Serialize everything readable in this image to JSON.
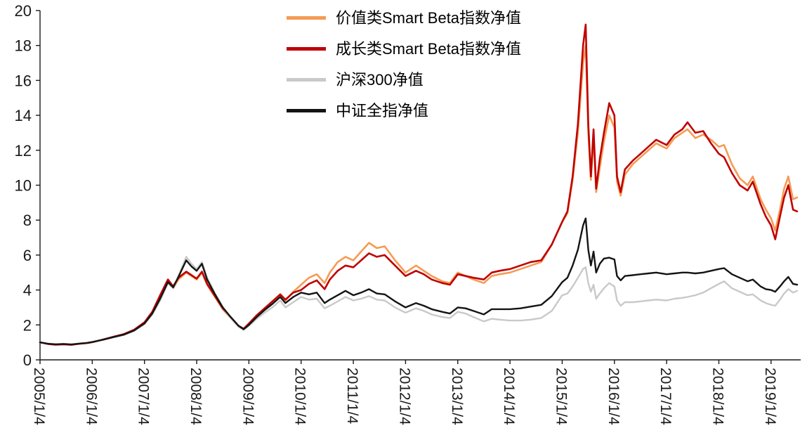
{
  "chart_data": {
    "type": "line",
    "title": "",
    "xlabel": "",
    "ylabel": "",
    "grid": false,
    "axis_color": "#1a1a1a",
    "legend": {
      "position": "top-center",
      "orientation": "vertical"
    },
    "y_axis": {
      "ticks": [
        0,
        2,
        4,
        6,
        8,
        10,
        12,
        14,
        16,
        18,
        20
      ],
      "range": [
        0,
        20
      ]
    },
    "x_axis": {
      "tick_labels": [
        "2005/1/4",
        "2006/1/4",
        "2007/1/4",
        "2008/1/4",
        "2009/1/4",
        "2010/1/4",
        "2011/1/4",
        "2012/1/4",
        "2013/1/4",
        "2014/1/4",
        "2015/1/4",
        "2016/1/4",
        "2017/1/4",
        "2018/1/4",
        "2019/1/4"
      ],
      "tick_positions": [
        2005,
        2006,
        2007,
        2008,
        2009,
        2010,
        2011,
        2012,
        2013,
        2014,
        2015,
        2016,
        2017,
        2018,
        2019
      ],
      "range": [
        2005,
        2019.5
      ],
      "label_rotation": 90
    },
    "x": [
      2005.0,
      2005.15,
      2005.3,
      2005.45,
      2005.6,
      2005.75,
      2005.9,
      2006.0,
      2006.2,
      2006.4,
      2006.6,
      2006.8,
      2007.0,
      2007.15,
      2007.3,
      2007.45,
      2007.55,
      2007.65,
      2007.8,
      2007.9,
      2008.0,
      2008.1,
      2008.2,
      2008.35,
      2008.5,
      2008.65,
      2008.8,
      2008.9,
      2009.0,
      2009.15,
      2009.3,
      2009.45,
      2009.6,
      2009.7,
      2009.85,
      2010.0,
      2010.15,
      2010.3,
      2010.45,
      2010.55,
      2010.7,
      2010.85,
      2011.0,
      2011.15,
      2011.3,
      2011.45,
      2011.6,
      2011.8,
      2012.0,
      2012.2,
      2012.35,
      2012.5,
      2012.7,
      2012.85,
      2013.0,
      2013.15,
      2013.3,
      2013.5,
      2013.65,
      2013.8,
      2014.0,
      2014.2,
      2014.4,
      2014.6,
      2014.8,
      2015.0,
      2015.1,
      2015.2,
      2015.3,
      2015.4,
      2015.45,
      2015.5,
      2015.55,
      2015.6,
      2015.65,
      2015.72,
      2015.8,
      2015.9,
      2016.0,
      2016.05,
      2016.12,
      2016.2,
      2016.35,
      2016.5,
      2016.65,
      2016.8,
      2017.0,
      2017.15,
      2017.3,
      2017.4,
      2017.55,
      2017.7,
      2017.85,
      2018.0,
      2018.1,
      2018.25,
      2018.4,
      2018.55,
      2018.65,
      2018.8,
      2018.9,
      2019.0,
      2019.08,
      2019.17,
      2019.25,
      2019.33,
      2019.42,
      2019.5
    ],
    "series": [
      {
        "name": "价值类Smart Beta指数净值",
        "color": "#f59b54",
        "values": [
          1.0,
          0.92,
          0.88,
          0.9,
          0.87,
          0.93,
          0.97,
          1.02,
          1.15,
          1.3,
          1.45,
          1.7,
          2.1,
          2.7,
          3.6,
          4.5,
          4.1,
          4.6,
          5.0,
          4.8,
          4.6,
          5.0,
          4.3,
          3.6,
          2.9,
          2.4,
          1.9,
          1.75,
          2.05,
          2.5,
          2.9,
          3.3,
          3.7,
          3.4,
          3.9,
          4.3,
          4.7,
          4.9,
          4.4,
          5.0,
          5.6,
          5.9,
          5.7,
          6.2,
          6.7,
          6.4,
          6.5,
          5.7,
          5.0,
          5.4,
          5.1,
          4.8,
          4.5,
          4.4,
          5.0,
          4.8,
          4.6,
          4.4,
          4.8,
          4.9,
          5.0,
          5.2,
          5.4,
          5.6,
          6.6,
          7.9,
          8.4,
          10.3,
          13.0,
          17.0,
          18.0,
          13.0,
          10.3,
          12.8,
          9.6,
          11.0,
          12.5,
          14.0,
          13.3,
          10.2,
          9.4,
          10.6,
          11.2,
          11.6,
          12.0,
          12.4,
          12.1,
          12.7,
          13.0,
          13.2,
          12.7,
          12.9,
          12.6,
          12.2,
          12.3,
          11.2,
          10.4,
          10.0,
          10.5,
          9.2,
          8.6,
          8.1,
          7.4,
          8.6,
          9.8,
          10.5,
          9.2,
          9.3
        ]
      },
      {
        "name": "成长类Smart Beta指数净值",
        "color": "#c00000",
        "values": [
          1.0,
          0.91,
          0.87,
          0.89,
          0.86,
          0.92,
          0.96,
          1.01,
          1.16,
          1.32,
          1.47,
          1.72,
          2.15,
          2.75,
          3.7,
          4.6,
          4.2,
          4.7,
          5.05,
          4.85,
          4.65,
          5.05,
          4.35,
          3.65,
          2.95,
          2.45,
          1.95,
          1.78,
          2.08,
          2.55,
          2.95,
          3.35,
          3.75,
          3.45,
          3.85,
          4.0,
          4.35,
          4.55,
          4.05,
          4.6,
          5.1,
          5.4,
          5.3,
          5.7,
          6.1,
          5.9,
          6.0,
          5.4,
          4.8,
          5.1,
          4.9,
          4.6,
          4.4,
          4.3,
          4.9,
          4.8,
          4.7,
          4.6,
          5.0,
          5.1,
          5.2,
          5.4,
          5.6,
          5.7,
          6.6,
          7.9,
          8.5,
          10.5,
          13.5,
          18.0,
          19.2,
          13.5,
          10.5,
          13.2,
          9.8,
          11.5,
          13.0,
          14.7,
          14.0,
          10.5,
          9.6,
          10.9,
          11.4,
          11.8,
          12.2,
          12.6,
          12.3,
          12.9,
          13.2,
          13.6,
          13.0,
          13.1,
          12.4,
          11.8,
          11.6,
          10.7,
          10.0,
          9.7,
          10.2,
          8.9,
          8.2,
          7.7,
          6.9,
          8.2,
          9.3,
          10.0,
          8.6,
          8.5
        ]
      },
      {
        "name": "沪深300净值",
        "color": "#c9c9c9",
        "values": [
          1.0,
          0.93,
          0.9,
          0.92,
          0.89,
          0.94,
          0.98,
          1.03,
          1.14,
          1.28,
          1.42,
          1.65,
          2.05,
          2.6,
          3.4,
          4.4,
          4.1,
          4.8,
          5.9,
          5.5,
          5.2,
          5.6,
          4.7,
          3.8,
          3.0,
          2.4,
          1.9,
          1.72,
          1.95,
          2.35,
          2.7,
          3.0,
          3.4,
          3.0,
          3.3,
          3.6,
          3.45,
          3.5,
          2.95,
          3.1,
          3.35,
          3.6,
          3.4,
          3.5,
          3.65,
          3.45,
          3.4,
          3.0,
          2.7,
          2.95,
          2.8,
          2.6,
          2.45,
          2.4,
          2.75,
          2.65,
          2.45,
          2.2,
          2.35,
          2.3,
          2.25,
          2.25,
          2.3,
          2.4,
          2.8,
          3.7,
          3.8,
          4.2,
          4.7,
          5.2,
          5.3,
          4.4,
          3.9,
          4.3,
          3.5,
          3.8,
          4.1,
          4.4,
          4.2,
          3.4,
          3.1,
          3.3,
          3.3,
          3.35,
          3.4,
          3.45,
          3.4,
          3.5,
          3.55,
          3.6,
          3.7,
          3.85,
          4.1,
          4.35,
          4.5,
          4.1,
          3.9,
          3.7,
          3.75,
          3.4,
          3.25,
          3.15,
          3.1,
          3.45,
          3.8,
          4.05,
          3.85,
          3.95
        ]
      },
      {
        "name": "中证全指净值",
        "color": "#141414",
        "values": [
          1.0,
          0.92,
          0.89,
          0.91,
          0.88,
          0.93,
          0.97,
          1.02,
          1.15,
          1.3,
          1.44,
          1.68,
          2.08,
          2.65,
          3.5,
          4.45,
          4.15,
          4.75,
          5.7,
          5.35,
          5.1,
          5.5,
          4.6,
          3.75,
          3.0,
          2.45,
          1.95,
          1.75,
          2.0,
          2.45,
          2.85,
          3.2,
          3.6,
          3.25,
          3.6,
          3.85,
          3.75,
          3.85,
          3.25,
          3.45,
          3.7,
          3.95,
          3.7,
          3.85,
          4.05,
          3.8,
          3.75,
          3.35,
          3.0,
          3.25,
          3.1,
          2.9,
          2.75,
          2.65,
          3.0,
          2.95,
          2.8,
          2.6,
          2.9,
          2.9,
          2.9,
          2.95,
          3.05,
          3.15,
          3.65,
          4.45,
          4.7,
          5.4,
          6.3,
          7.7,
          8.1,
          6.3,
          5.4,
          6.2,
          5.0,
          5.5,
          5.8,
          5.85,
          5.75,
          4.8,
          4.55,
          4.8,
          4.85,
          4.9,
          4.95,
          5.0,
          4.9,
          4.95,
          5.0,
          5.0,
          4.95,
          5.0,
          5.1,
          5.2,
          5.25,
          4.9,
          4.7,
          4.5,
          4.6,
          4.2,
          4.05,
          4.0,
          3.9,
          4.2,
          4.5,
          4.75,
          4.35,
          4.3
        ]
      }
    ]
  }
}
